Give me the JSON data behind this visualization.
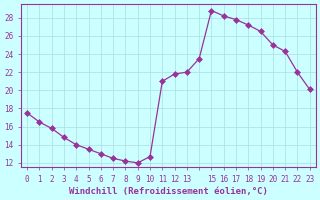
{
  "x_full": [
    0,
    1,
    2,
    3,
    4,
    5,
    6,
    7,
    8,
    9,
    10,
    11,
    12,
    13,
    14,
    15,
    16,
    17,
    18,
    19,
    20,
    21,
    22,
    23
  ],
  "y_full": [
    17.5,
    16.5,
    15.8,
    14.8,
    14.0,
    13.5,
    13.0,
    12.5,
    12.2,
    12.0,
    12.7,
    21.0,
    21.8,
    22.0,
    23.5,
    28.8,
    28.2,
    27.8,
    27.2,
    26.5,
    25.0,
    24.3,
    22.0,
    20.1
  ],
  "line_color": "#993399",
  "marker": "D",
  "marker_size": 3,
  "background_color": "#ccffff",
  "grid_color": "#aadddd",
  "xlabel": "Windchill (Refroidissement éolien,°C)",
  "xlim": [
    -0.5,
    23.5
  ],
  "ylim": [
    11.5,
    29.5
  ],
  "yticks": [
    12,
    14,
    16,
    18,
    20,
    22,
    24,
    26,
    28
  ],
  "xticks": [
    0,
    1,
    2,
    3,
    4,
    5,
    6,
    7,
    8,
    9,
    10,
    11,
    12,
    13,
    14,
    15,
    16,
    17,
    18,
    19,
    20,
    21,
    22,
    23
  ],
  "xtick_labels": [
    "0",
    "1",
    "2",
    "3",
    "4",
    "5",
    "6",
    "7",
    "8",
    "9",
    "10",
    "11",
    "12",
    "13",
    "",
    "15",
    "16",
    "17",
    "18",
    "19",
    "20",
    "21",
    "22",
    "23"
  ],
  "label_fontsize": 6.5,
  "tick_fontsize": 5.5
}
